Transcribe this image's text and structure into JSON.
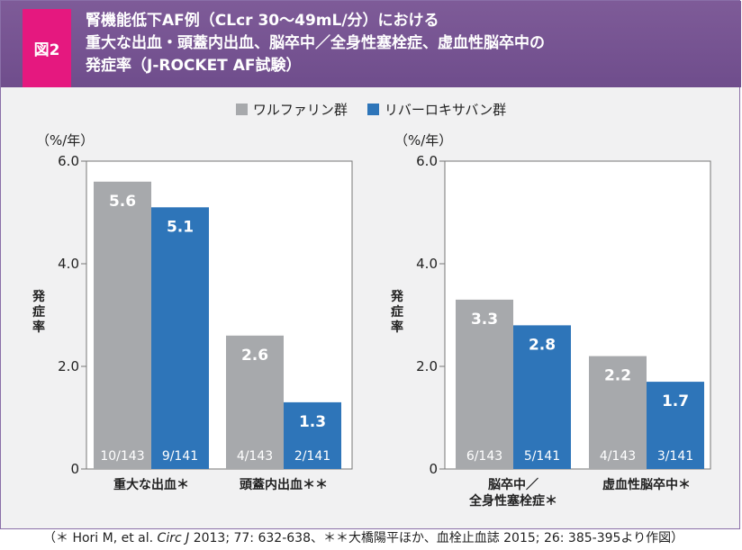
{
  "figure_label": "図2",
  "title_lines": [
    "腎機能低下AF例（CLcr 30〜49mL/分）における",
    "重大な出血・頭蓋内出血、脳卒中／全身性塞栓症、虚血性脳卒中の",
    "発症率（J-ROCKET AF試験）"
  ],
  "legend": [
    {
      "label": "ワルファリン群",
      "color": "#a7a9ac"
    },
    {
      "label": "リバーロキサバン群",
      "color": "#2e75b9"
    }
  ],
  "colors": {
    "warfarin": "#a7a9ac",
    "rivaroxaban": "#2e75b9",
    "header": "#74528f",
    "badge": "#e5187f"
  },
  "chart_data": [
    {
      "type": "bar",
      "unit_label": "（%/年）",
      "ylabel": "発症率",
      "ylim": [
        0,
        6.0
      ],
      "yticks": [
        "0",
        "2.0",
        "4.0",
        "6.0"
      ],
      "ytick_values": [
        0,
        2,
        4,
        6
      ],
      "categories": [
        "重大な出血＊",
        "頭蓋内出血＊＊"
      ],
      "series": [
        {
          "name": "ワルファリン群",
          "values": [
            5.6,
            2.6
          ],
          "value_labels": [
            "5.6",
            "2.6"
          ],
          "counts": [
            "10/143",
            "4/143"
          ]
        },
        {
          "name": "リバーロキサバン群",
          "values": [
            5.1,
            1.3
          ],
          "value_labels": [
            "5.1",
            "1.3"
          ],
          "counts": [
            "9/141",
            "2/141"
          ]
        }
      ]
    },
    {
      "type": "bar",
      "unit_label": "（%/年）",
      "ylabel": "発症率",
      "ylim": [
        0,
        6.0
      ],
      "yticks": [
        "0",
        "2.0",
        "4.0",
        "6.0"
      ],
      "ytick_values": [
        0,
        2,
        4,
        6
      ],
      "categories": [
        "脳卒中／\n全身性塞栓症＊",
        "虚血性脳卒中＊"
      ],
      "series": [
        {
          "name": "ワルファリン群",
          "values": [
            3.3,
            2.2
          ],
          "value_labels": [
            "3.3",
            "2.2"
          ],
          "counts": [
            "6/143",
            "4/143"
          ]
        },
        {
          "name": "リバーロキサバン群",
          "values": [
            2.8,
            1.7
          ],
          "value_labels": [
            "2.8",
            "1.7"
          ],
          "counts": [
            "5/141",
            "3/141"
          ]
        }
      ]
    }
  ],
  "footnote": {
    "prefix": "（＊ Hori M, et al. ",
    "journal": "Circ J",
    "suffix": " 2013; 77: 632-638、＊＊大橋陽平ほか、血栓止血誌 2015; 26: 385-395より作図）"
  }
}
